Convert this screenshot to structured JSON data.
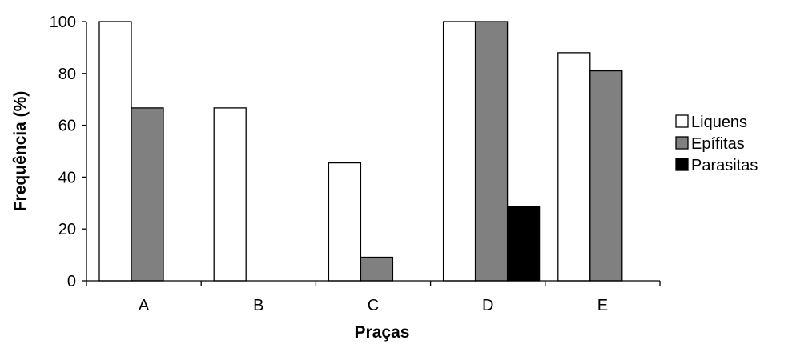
{
  "chart_data": {
    "type": "bar",
    "title": "",
    "xlabel": "Praças",
    "ylabel": "Frequência (%)",
    "categories": [
      "A",
      "B",
      "C",
      "D",
      "E"
    ],
    "ylim": [
      0,
      100
    ],
    "yticks": [
      0,
      20,
      40,
      60,
      80,
      100
    ],
    "grid": false,
    "legend_position": "right",
    "series": [
      {
        "name": "Liquens",
        "color": "#ffffff",
        "values": [
          100,
          66.7,
          45.5,
          100,
          88
        ]
      },
      {
        "name": "Epífitas",
        "color": "#808080",
        "values": [
          66.7,
          0,
          9.1,
          100,
          81
        ]
      },
      {
        "name": "Parasitas",
        "color": "#000000",
        "values": [
          0,
          0,
          0,
          28.6,
          0
        ]
      }
    ]
  }
}
